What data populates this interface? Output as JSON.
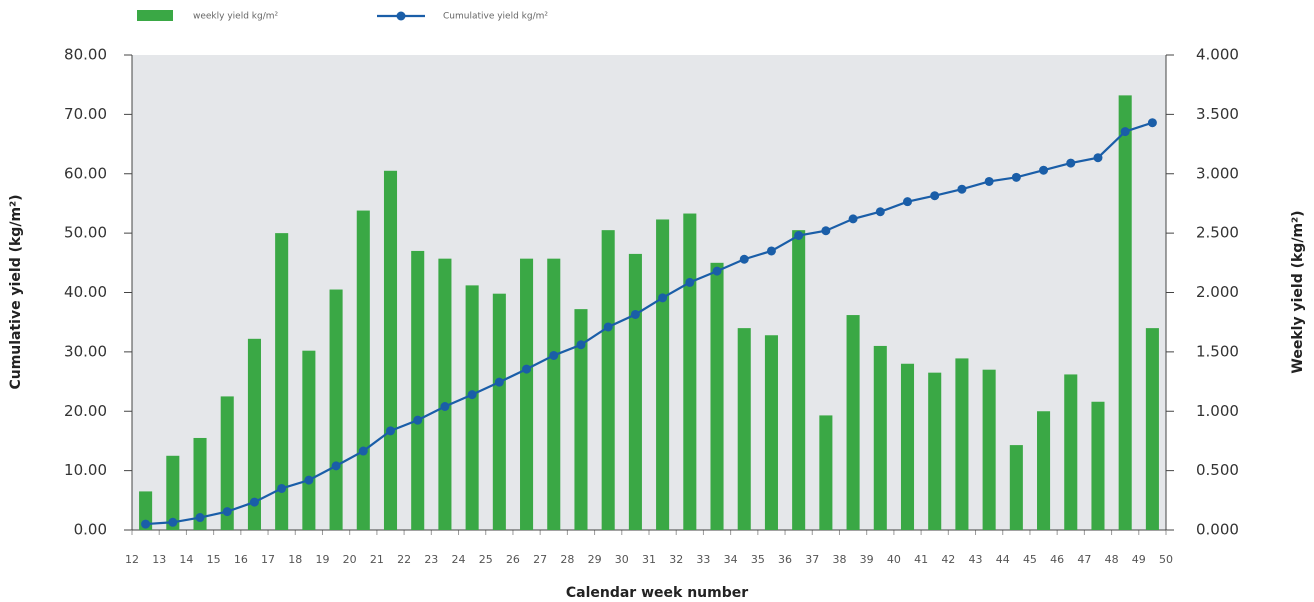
{
  "chart_data": {
    "type": "bar-line",
    "xlabel": "Calendar week number",
    "ylabel": "Cumulative yield (kg/m²)",
    "y2label": "Weekly yield (kg/m²)",
    "x": [
      12,
      13,
      14,
      15,
      16,
      17,
      18,
      19,
      20,
      21,
      22,
      23,
      24,
      25,
      26,
      27,
      28,
      29,
      30,
      31,
      32,
      33,
      34,
      35,
      36,
      37,
      38,
      39,
      40,
      41,
      42,
      43,
      44,
      45,
      46,
      47,
      48,
      49
    ],
    "xlim": [
      12,
      50
    ],
    "xticks": [
      12,
      13,
      14,
      15,
      16,
      17,
      18,
      19,
      20,
      21,
      22,
      23,
      24,
      25,
      26,
      27,
      28,
      29,
      30,
      31,
      32,
      33,
      34,
      35,
      36,
      37,
      38,
      39,
      40,
      41,
      42,
      43,
      44,
      45,
      46,
      47,
      48,
      49,
      50
    ],
    "ylim": [
      0,
      80
    ],
    "yticks": [
      {
        "value": 0,
        "label": "0.00"
      },
      {
        "value": 10,
        "label": "10.00"
      },
      {
        "value": 20,
        "label": "20.00"
      },
      {
        "value": 30,
        "label": "30.00"
      },
      {
        "value": 40,
        "label": "40.00"
      },
      {
        "value": 50,
        "label": "50.00"
      },
      {
        "value": 60,
        "label": "60.00"
      },
      {
        "value": 70,
        "label": "70.00"
      },
      {
        "value": 80,
        "label": "80.00"
      }
    ],
    "y2lim": [
      0,
      4
    ],
    "y2ticks": [
      {
        "value": 0,
        "label": "0.000"
      },
      {
        "value": 0.5,
        "label": "0.500"
      },
      {
        "value": 1,
        "label": "1.000"
      },
      {
        "value": 1.5,
        "label": "1.500"
      },
      {
        "value": 2,
        "label": "2.000"
      },
      {
        "value": 2.5,
        "label": "2.500"
      },
      {
        "value": 3,
        "label": "3.000"
      },
      {
        "value": 3.5,
        "label": "3.500"
      },
      {
        "value": 4,
        "label": "4.000"
      }
    ],
    "series": [
      {
        "name": "weekly yield kg/m²",
        "type": "bar",
        "axis": "y2",
        "color": "#3aa845",
        "values": [
          0.325,
          0.625,
          0.775,
          1.125,
          1.61,
          2.5,
          1.51,
          2.025,
          2.69,
          3.025,
          2.35,
          2.285,
          2.06,
          1.99,
          2.285,
          2.285,
          1.86,
          2.525,
          2.325,
          2.615,
          2.665,
          2.25,
          1.7,
          1.64,
          2.525,
          0.965,
          1.81,
          1.55,
          1.4,
          1.325,
          1.445,
          1.35,
          0.715,
          1.0,
          1.31,
          1.08,
          3.66,
          1.7
        ]
      },
      {
        "name": "Cumulative yield kg/m²",
        "type": "line",
        "axis": "y",
        "color": "#1a5ea8",
        "values": [
          1.0,
          1.3,
          2.1,
          3.1,
          4.7,
          7.0,
          8.4,
          10.8,
          13.3,
          16.7,
          18.5,
          20.8,
          22.8,
          24.9,
          27.1,
          29.4,
          31.2,
          34.2,
          36.3,
          39.1,
          41.7,
          43.6,
          45.6,
          47.0,
          49.6,
          50.4,
          52.4,
          53.6,
          55.3,
          56.3,
          57.4,
          58.7,
          59.4,
          60.6,
          61.8,
          62.7,
          67.1,
          68.6
        ]
      }
    ],
    "plot_background": "#e5e7ea"
  }
}
